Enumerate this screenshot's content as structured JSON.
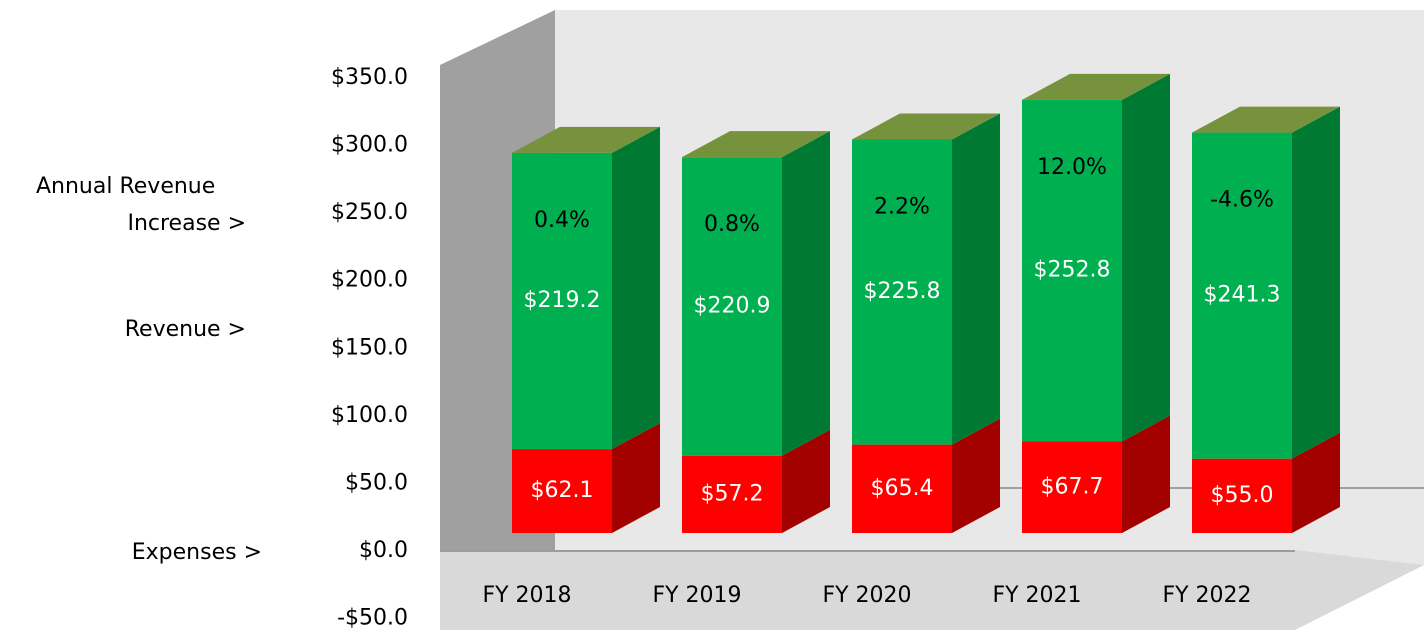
{
  "chart_data": {
    "type": "bar3d_stacked",
    "categories": [
      "FY 2018",
      "FY 2019",
      "FY 2020",
      "FY 2021",
      "FY 2022"
    ],
    "series": [
      {
        "name": "Expenses >",
        "color": "#ff0000",
        "side_color": "#a30000",
        "values": [
          62.1,
          57.2,
          65.4,
          67.7,
          55.0
        ],
        "value_labels": [
          "$62.1",
          "$57.2",
          "$65.4",
          "$67.7",
          "$55.0"
        ]
      },
      {
        "name": "Revenue >",
        "color": "#00b050",
        "side_color": "#007a33",
        "values": [
          219.2,
          220.9,
          225.8,
          252.8,
          241.3
        ],
        "value_labels": [
          "$219.2",
          "$220.9",
          "$225.8",
          "$252.8",
          "$241.3"
        ]
      }
    ],
    "increase": {
      "name": [
        "Annual Revenue",
        "Increase >"
      ],
      "values": [
        0.4,
        0.8,
        2.2,
        12.0,
        -4.6
      ],
      "value_labels": [
        "0.4%",
        "0.8%",
        "2.2%",
        "12.0%",
        "-4.6%"
      ]
    },
    "top_color": "#76923c",
    "ylim": [
      -50,
      350
    ],
    "yticks": [
      {
        "value": -50,
        "label": "-$50.0"
      },
      {
        "value": 0,
        "label": "$0.0"
      },
      {
        "value": 50,
        "label": "$50.0"
      },
      {
        "value": 100,
        "label": "$100.0"
      },
      {
        "value": 150,
        "label": "$150.0"
      },
      {
        "value": 200,
        "label": "$200.0"
      },
      {
        "value": 250,
        "label": "$250.0"
      },
      {
        "value": 300,
        "label": "$300.0"
      },
      {
        "value": 350,
        "label": "$350.0"
      }
    ]
  }
}
